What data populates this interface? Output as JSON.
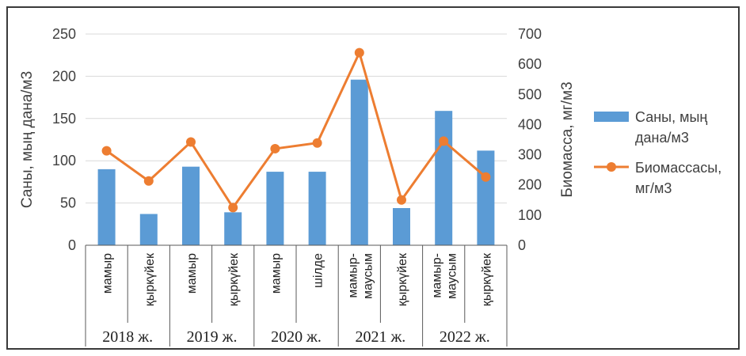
{
  "chart_data": {
    "type": "bar+line",
    "categories": [
      "мамыр",
      "қыркүйек",
      "мамыр",
      "қыркүйек",
      "мамыр",
      "шілде",
      [
        "мамыр-",
        "маусым"
      ],
      "қыркүйек",
      [
        "мамыр-",
        "маусым"
      ],
      "қыркүйек"
    ],
    "groups": [
      {
        "label": "2018 ж.",
        "span": 2
      },
      {
        "label": "2019 ж.",
        "span": 2
      },
      {
        "label": "2020 ж.",
        "span": 2
      },
      {
        "label": "2021 ж.",
        "span": 2
      },
      {
        "label": "2022 ж.",
        "span": 2
      }
    ],
    "series": [
      {
        "name": "Саны, мың дана/м3",
        "type": "bar",
        "axis": "left",
        "color": "#5b9bd5",
        "values": [
          90,
          37,
          93,
          39,
          87,
          87,
          196,
          44,
          159,
          112
        ]
      },
      {
        "name": "Биомассасы, мг/м3",
        "type": "line",
        "axis": "right",
        "color": "#ed7d31",
        "values": [
          313,
          213,
          342,
          125,
          320,
          339,
          638,
          150,
          345,
          226
        ]
      }
    ],
    "y_left": {
      "label": "Саны, мың дана/м3",
      "ylim": [
        0,
        250
      ],
      "ticks": [
        "0",
        "50",
        "100",
        "150",
        "200",
        "250"
      ]
    },
    "y_right": {
      "label": "Биомасса, мг/м3",
      "ylim": [
        0,
        700
      ],
      "ticks": [
        "0",
        "100",
        "200",
        "300",
        "400",
        "500",
        "600",
        "700"
      ]
    },
    "legend": {
      "position": "right",
      "items": [
        {
          "series": 0,
          "lines": [
            "Саны, мың",
            "дана/м3"
          ]
        },
        {
          "series": 1,
          "lines": [
            "Биомассасы,",
            "мг/м3"
          ]
        }
      ]
    },
    "grid": true
  }
}
